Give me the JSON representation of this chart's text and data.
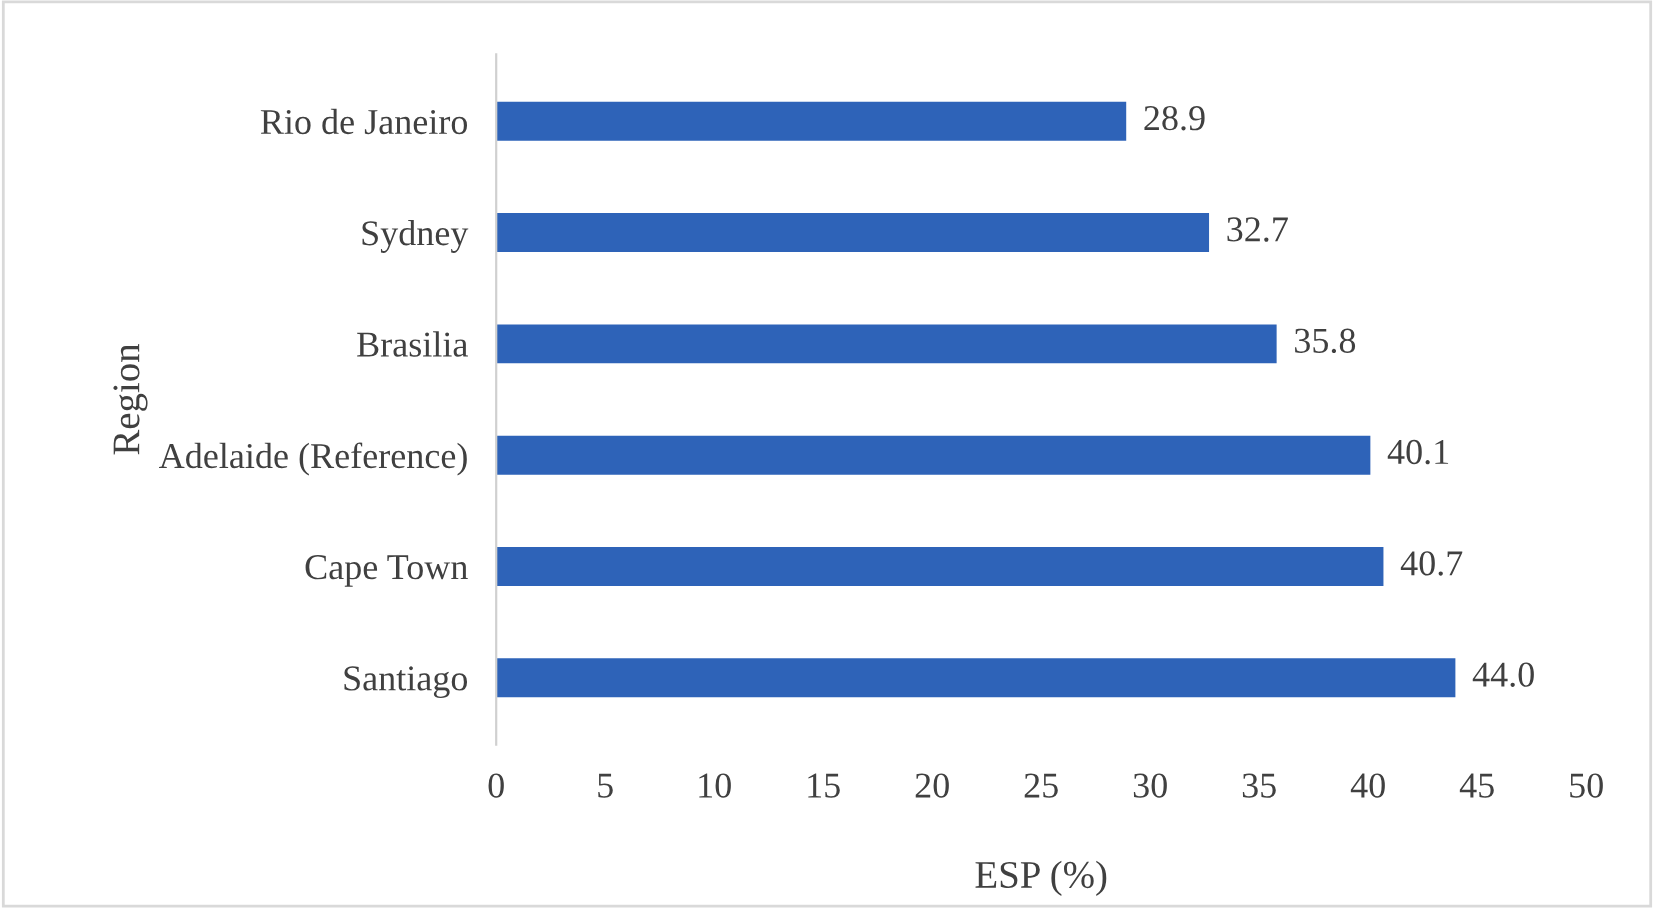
{
  "chart_data": {
    "type": "bar",
    "orientation": "horizontal",
    "xlabel": "ESP (%)",
    "ylabel": "Region",
    "categories": [
      "Rio de Janeiro",
      "Sydney",
      "Brasilia",
      "Adelaide (Reference)",
      "Cape Town",
      "Santiago"
    ],
    "values": [
      28.9,
      32.7,
      35.8,
      40.1,
      40.7,
      44.0
    ],
    "value_labels": [
      "28.9",
      "32.7",
      "35.8",
      "40.1",
      "40.7",
      "44.0"
    ],
    "color": "#2e63b8",
    "xlim": [
      0,
      50
    ],
    "xticks": [
      0,
      5,
      10,
      15,
      20,
      25,
      30,
      35,
      40,
      45,
      50
    ],
    "grid": false,
    "legend": false
  }
}
